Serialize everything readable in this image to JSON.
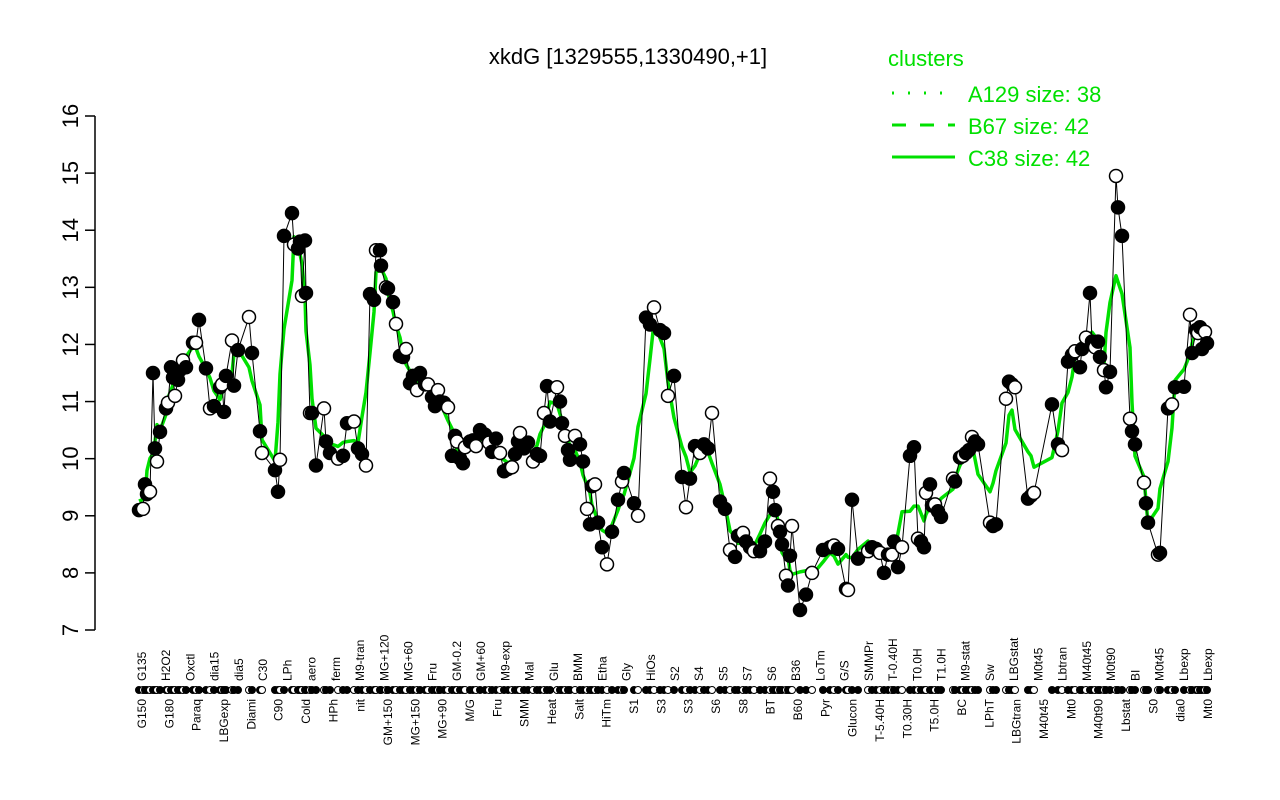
{
  "chart_data": {
    "type": "line",
    "title": "xkdG [1329555,1330490,+1]",
    "xlabel": "",
    "ylabel": "",
    "ylim": [
      7,
      16
    ],
    "yticks": [
      7,
      8,
      9,
      10,
      11,
      12,
      13,
      14,
      15,
      16
    ],
    "grid": false,
    "legend": {
      "position": "top-right",
      "title": "clusters",
      "color": "#00e000",
      "entries": [
        {
          "label": "A129 size: 38",
          "style": "dotted"
        },
        {
          "label": "B67 size: 42",
          "style": "dashed"
        },
        {
          "label": "C38 size: 42",
          "style": "solid"
        }
      ]
    },
    "x_tick_labels_top": [
      "G135",
      "H2O2",
      "Oxctl",
      "dia15",
      "dia5",
      "C30",
      "LPh",
      "aero",
      "ferm",
      "M9-tran",
      "MG+120",
      "MG+60",
      "Fru",
      "GM-0.2",
      "GM+60",
      "M9-exp",
      "Mal",
      "Glu",
      "BMM",
      "Etha",
      "Gly",
      "HiOs",
      "S2",
      "S4",
      "S5",
      "S7",
      "S6",
      "B36",
      "LoTm",
      "G/S",
      "SMMPr",
      "T-0.40H",
      "T0.0H",
      "T1.0H",
      "M9-stat",
      "Sw",
      "LBGstat",
      "M0t45",
      "Lbtran",
      "M40t45",
      "M0t90",
      "BI",
      "M0t45",
      "Lbexp",
      "Lbexp"
    ],
    "x_tick_labels_bottom": [
      "G150",
      "G180",
      "Paraq",
      "LBGexp",
      "Diami",
      "C90",
      "Cold",
      "HPh",
      "nit",
      "GM+150",
      "MG+150",
      "MG+90",
      "M/G",
      "Fru",
      "SMM",
      "Heat",
      "Salt",
      "HiTm",
      "S1",
      "S3",
      "S3",
      "S6",
      "S8",
      "BT",
      "B60",
      "Pyr",
      "Glucon",
      "T-5.40H",
      "T0.30H",
      "T5.0H",
      "BC",
      "LPhT",
      "LBGtran",
      "M40t45",
      "Mt0",
      "M40t90",
      "Lbstat",
      "S0",
      "dia0",
      "Mt0"
    ],
    "series": [
      {
        "name": "expression",
        "points": [
          [
            139,
            9.1
          ],
          [
            143,
            9.12
          ],
          [
            145,
            9.55
          ],
          [
            147,
            9.38
          ],
          [
            150,
            9.42
          ],
          [
            153,
            11.5
          ],
          [
            155,
            10.18
          ],
          [
            157,
            9.95
          ],
          [
            160,
            10.47
          ],
          [
            166,
            10.88
          ],
          [
            168,
            10.98
          ],
          [
            171,
            11.6
          ],
          [
            173,
            11.42
          ],
          [
            175,
            11.1
          ],
          [
            178,
            11.38
          ],
          [
            180,
            11.55
          ],
          [
            183,
            11.72
          ],
          [
            186,
            11.6
          ],
          [
            193,
            12.03
          ],
          [
            196,
            12.03
          ],
          [
            199,
            12.43
          ],
          [
            206,
            11.58
          ],
          [
            210,
            10.88
          ],
          [
            214,
            10.92
          ],
          [
            220,
            11.25
          ],
          [
            222,
            11.3
          ],
          [
            224,
            10.82
          ],
          [
            226,
            11.45
          ],
          [
            232,
            12.07
          ],
          [
            234,
            11.28
          ],
          [
            238,
            11.9
          ],
          [
            249,
            12.48
          ],
          [
            252,
            11.85
          ],
          [
            260,
            10.48
          ],
          [
            262,
            10.1
          ],
          [
            275,
            9.8
          ],
          [
            278,
            9.42
          ],
          [
            280,
            9.98
          ],
          [
            284,
            13.9
          ],
          [
            292,
            14.3
          ],
          [
            294,
            13.75
          ],
          [
            298,
            13.68
          ],
          [
            300,
            13.8
          ],
          [
            302,
            12.85
          ],
          [
            305,
            13.82
          ],
          [
            306,
            12.9
          ],
          [
            310,
            10.8
          ],
          [
            312,
            10.8
          ],
          [
            316,
            9.88
          ],
          [
            324,
            10.88
          ],
          [
            326,
            10.3
          ],
          [
            330,
            10.1
          ],
          [
            338,
            10.0
          ],
          [
            343,
            10.05
          ],
          [
            347,
            10.62
          ],
          [
            354,
            10.65
          ],
          [
            358,
            10.18
          ],
          [
            362,
            10.08
          ],
          [
            366,
            9.88
          ],
          [
            370,
            12.88
          ],
          [
            374,
            12.78
          ],
          [
            376,
            13.65
          ],
          [
            380,
            13.65
          ],
          [
            381,
            13.38
          ],
          [
            386,
            13.0
          ],
          [
            388,
            12.98
          ],
          [
            393,
            12.74
          ],
          [
            396,
            12.36
          ],
          [
            400,
            11.8
          ],
          [
            403,
            11.78
          ],
          [
            406,
            11.92
          ],
          [
            410,
            11.32
          ],
          [
            413,
            11.45
          ],
          [
            417,
            11.2
          ],
          [
            420,
            11.5
          ],
          [
            425,
            11.3
          ],
          [
            428,
            11.3
          ],
          [
            432,
            11.08
          ],
          [
            435,
            10.92
          ],
          [
            438,
            11.2
          ],
          [
            440,
            11.0
          ],
          [
            444,
            10.98
          ],
          [
            448,
            10.9
          ],
          [
            452,
            10.05
          ],
          [
            455,
            10.4
          ],
          [
            457,
            10.3
          ],
          [
            460,
            10.0
          ],
          [
            463,
            9.92
          ],
          [
            465,
            10.2
          ],
          [
            470,
            10.3
          ],
          [
            473,
            10.32
          ],
          [
            476,
            10.22
          ],
          [
            480,
            10.5
          ],
          [
            485,
            10.42
          ],
          [
            489,
            10.28
          ],
          [
            492,
            10.12
          ],
          [
            496,
            10.35
          ],
          [
            500,
            10.1
          ],
          [
            504,
            9.78
          ],
          [
            508,
            9.82
          ],
          [
            512,
            9.85
          ],
          [
            515,
            10.08
          ],
          [
            518,
            10.3
          ],
          [
            520,
            10.45
          ],
          [
            524,
            10.18
          ],
          [
            528,
            10.28
          ],
          [
            533,
            9.95
          ],
          [
            537,
            10.08
          ],
          [
            540,
            10.05
          ],
          [
            544,
            10.8
          ],
          [
            547,
            11.27
          ],
          [
            550,
            10.65
          ],
          [
            557,
            11.25
          ],
          [
            560,
            11.0
          ],
          [
            562,
            10.62
          ],
          [
            565,
            10.4
          ],
          [
            568,
            10.15
          ],
          [
            570,
            9.98
          ],
          [
            575,
            10.4
          ],
          [
            580,
            10.25
          ],
          [
            583,
            9.95
          ],
          [
            587,
            9.12
          ],
          [
            590,
            8.85
          ],
          [
            592,
            9.52
          ],
          [
            595,
            9.55
          ],
          [
            598,
            8.88
          ],
          [
            602,
            8.45
          ],
          [
            607,
            8.15
          ],
          [
            612,
            8.72
          ],
          [
            618,
            9.28
          ],
          [
            622,
            9.6
          ],
          [
            624,
            9.75
          ],
          [
            634,
            9.22
          ],
          [
            638,
            9.0
          ],
          [
            646,
            12.47
          ],
          [
            650,
            12.35
          ],
          [
            654,
            12.65
          ],
          [
            660,
            12.25
          ],
          [
            664,
            12.2
          ],
          [
            668,
            11.1
          ],
          [
            674,
            11.45
          ],
          [
            682,
            9.68
          ],
          [
            686,
            9.15
          ],
          [
            690,
            9.65
          ],
          [
            695,
            10.22
          ],
          [
            700,
            10.1
          ],
          [
            704,
            10.25
          ],
          [
            708,
            10.18
          ],
          [
            712,
            10.8
          ],
          [
            720,
            9.25
          ],
          [
            725,
            9.12
          ],
          [
            730,
            8.4
          ],
          [
            735,
            8.28
          ],
          [
            738,
            8.65
          ],
          [
            743,
            8.7
          ],
          [
            746,
            8.55
          ],
          [
            750,
            8.45
          ],
          [
            754,
            8.38
          ],
          [
            760,
            8.38
          ],
          [
            765,
            8.55
          ],
          [
            770,
            9.65
          ],
          [
            773,
            9.42
          ],
          [
            775,
            9.1
          ],
          [
            778,
            8.82
          ],
          [
            780,
            8.72
          ],
          [
            782,
            8.5
          ],
          [
            786,
            7.95
          ],
          [
            788,
            7.78
          ],
          [
            790,
            8.3
          ],
          [
            792,
            8.82
          ],
          [
            800,
            7.35
          ],
          [
            806,
            7.62
          ],
          [
            812,
            8.0
          ],
          [
            823,
            8.4
          ],
          [
            830,
            8.45
          ],
          [
            834,
            8.48
          ],
          [
            838,
            8.42
          ],
          [
            846,
            7.72
          ],
          [
            848,
            7.7
          ],
          [
            852,
            9.28
          ],
          [
            858,
            8.25
          ],
          [
            868,
            8.38
          ],
          [
            872,
            8.45
          ],
          [
            876,
            8.42
          ],
          [
            880,
            8.35
          ],
          [
            884,
            8.0
          ],
          [
            888,
            8.32
          ],
          [
            892,
            8.32
          ],
          [
            894,
            8.55
          ],
          [
            898,
            8.1
          ],
          [
            902,
            8.45
          ],
          [
            910,
            10.05
          ],
          [
            914,
            10.2
          ],
          [
            918,
            8.6
          ],
          [
            921,
            8.55
          ],
          [
            924,
            8.45
          ],
          [
            926,
            9.4
          ],
          [
            930,
            9.55
          ],
          [
            932,
            9.18
          ],
          [
            935,
            9.2
          ],
          [
            938,
            9.08
          ],
          [
            941,
            8.98
          ],
          [
            953,
            9.65
          ],
          [
            955,
            9.6
          ],
          [
            960,
            10.02
          ],
          [
            963,
            10.05
          ],
          [
            966,
            10.1
          ],
          [
            969,
            10.15
          ],
          [
            972,
            10.38
          ],
          [
            975,
            10.3
          ],
          [
            978,
            10.25
          ],
          [
            990,
            8.88
          ],
          [
            993,
            8.82
          ],
          [
            996,
            8.85
          ],
          [
            1006,
            11.05
          ],
          [
            1009,
            11.35
          ],
          [
            1012,
            11.3
          ],
          [
            1015,
            11.25
          ],
          [
            1028,
            9.3
          ],
          [
            1031,
            9.35
          ],
          [
            1034,
            9.4
          ],
          [
            1052,
            10.95
          ],
          [
            1058,
            10.25
          ],
          [
            1062,
            10.15
          ],
          [
            1068,
            11.7
          ],
          [
            1072,
            11.82
          ],
          [
            1075,
            11.88
          ],
          [
            1080,
            11.6
          ],
          [
            1082,
            11.92
          ],
          [
            1086,
            12.12
          ],
          [
            1090,
            12.9
          ],
          [
            1092,
            12.05
          ],
          [
            1095,
            11.95
          ],
          [
            1098,
            12.05
          ],
          [
            1100,
            11.78
          ],
          [
            1104,
            11.55
          ],
          [
            1106,
            11.25
          ],
          [
            1110,
            11.52
          ],
          [
            1116,
            14.95
          ],
          [
            1118,
            14.4
          ],
          [
            1122,
            13.9
          ],
          [
            1130,
            10.7
          ],
          [
            1132,
            10.48
          ],
          [
            1135,
            10.25
          ],
          [
            1144,
            9.58
          ],
          [
            1146,
            9.22
          ],
          [
            1148,
            8.88
          ],
          [
            1158,
            8.32
          ],
          [
            1160,
            8.35
          ],
          [
            1168,
            10.88
          ],
          [
            1172,
            10.95
          ],
          [
            1175,
            11.25
          ],
          [
            1184,
            11.26
          ],
          [
            1190,
            12.52
          ],
          [
            1192,
            11.85
          ],
          [
            1196,
            12.25
          ],
          [
            1198,
            12.2
          ],
          [
            1200,
            12.3
          ],
          [
            1202,
            11.92
          ],
          [
            1205,
            12.22
          ],
          [
            1207,
            12.02
          ]
        ]
      }
    ]
  },
  "legend": {
    "title": "clusters",
    "entries": [
      {
        "label": "A129 size: 38"
      },
      {
        "label": "B67 size: 42"
      },
      {
        "label": "C38 size: 42"
      }
    ]
  }
}
